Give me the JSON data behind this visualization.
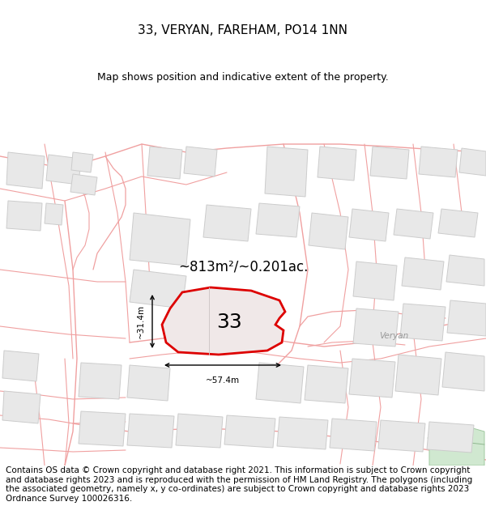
{
  "title": "33, VERYAN, FAREHAM, PO14 1NN",
  "subtitle": "Map shows position and indicative extent of the property.",
  "footer": "Contains OS data © Crown copyright and database right 2021. This information is subject to Crown copyright and database rights 2023 and is reproduced with the permission of HM Land Registry. The polygons (including the associated geometry, namely x, y co-ordinates) are subject to Crown copyright and database rights 2023 Ordnance Survey 100026316.",
  "area_label": "~813m²/~0.201ac.",
  "width_label": "~57.4m",
  "height_label": "~31.4m",
  "number_label": "33",
  "veryan_label": "Veryan",
  "bg_color": "#ffffff",
  "map_bg": "#ffffff",
  "building_fill": "#e8e8e8",
  "building_stroke": "#cccccc",
  "road_color": "#f0a0a0",
  "highlight_fill": "#f0e8e8",
  "highlight_stroke": "#dd0000",
  "green_fill": "#d0e8d0",
  "green_stroke": "#a0c8a0",
  "title_fontsize": 11,
  "subtitle_fontsize": 9,
  "footer_fontsize": 7.5
}
